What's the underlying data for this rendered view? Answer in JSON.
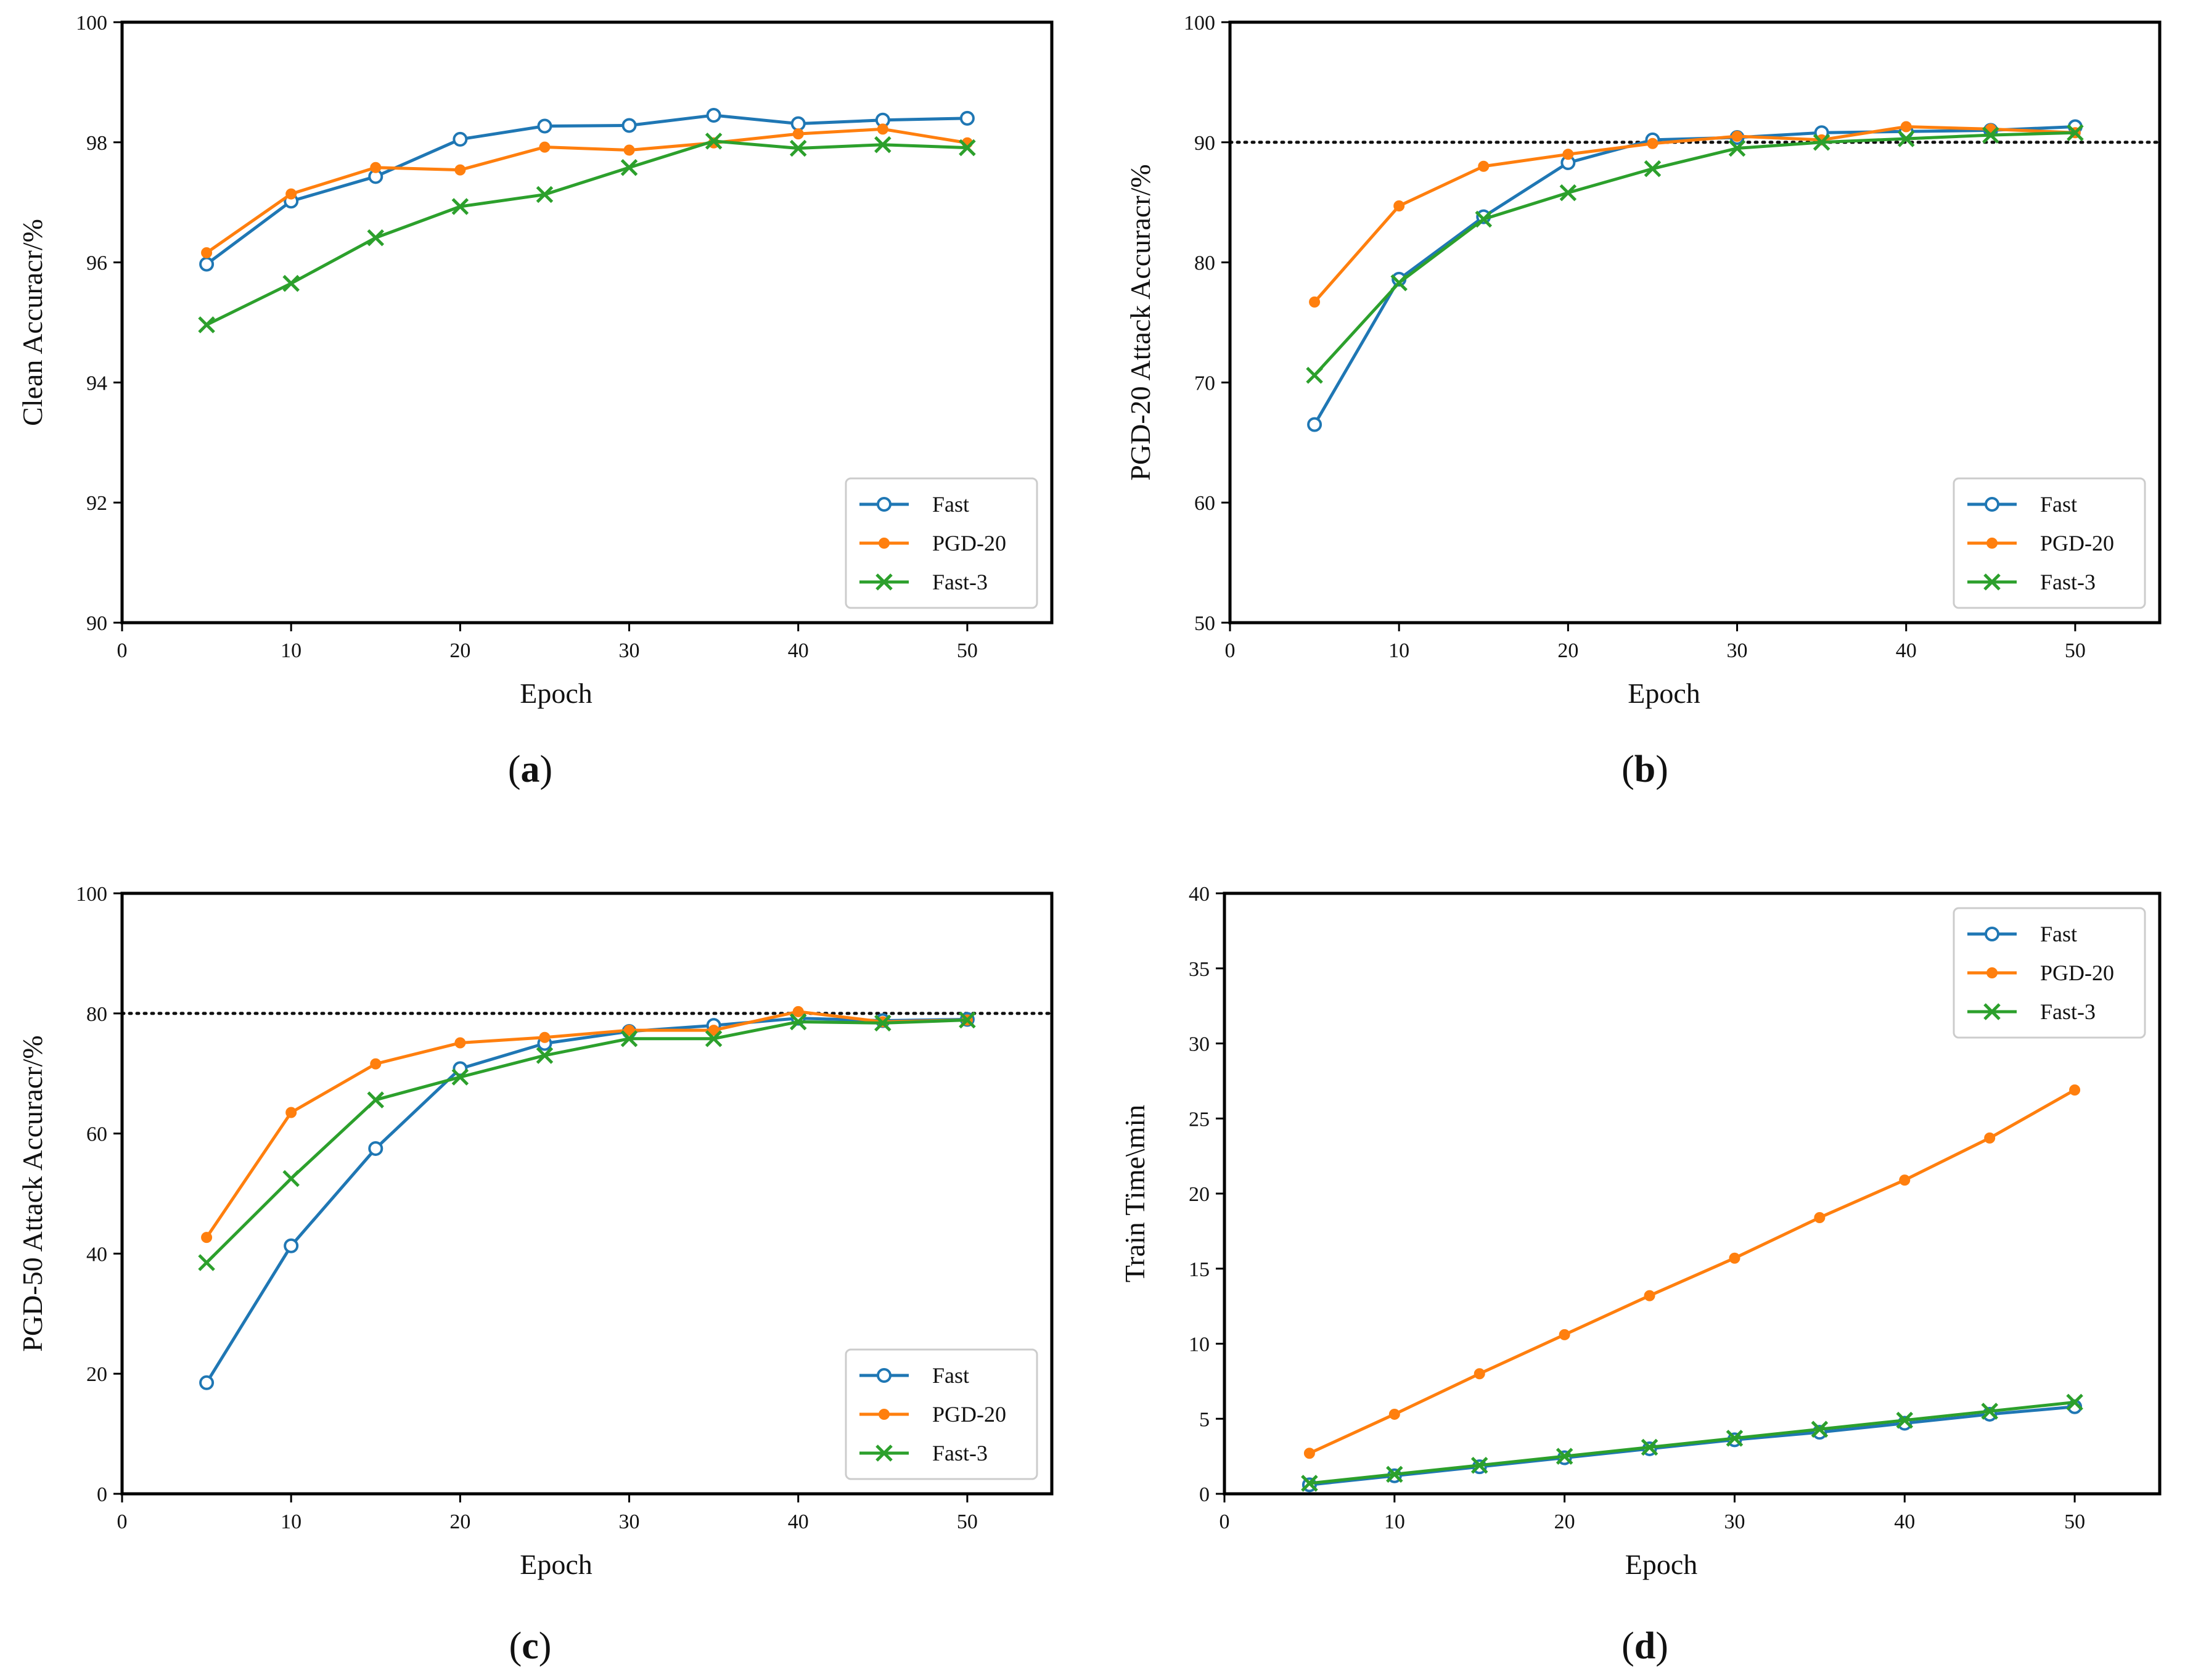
{
  "colors": {
    "Fast": "#1f77b4",
    "PGD-20": "#ff7f0e",
    "Fast-3": "#2ca02c",
    "reference": "#111111"
  },
  "chart_data": [
    {
      "type": "line",
      "panel": "a",
      "caption": "(a)",
      "title": "",
      "xlabel": "Epoch",
      "ylabel": "Clean Accuracr/%",
      "xlim": [
        0,
        55
      ],
      "ylim": [
        90,
        100
      ],
      "xticks": [
        0,
        10,
        20,
        30,
        40,
        50
      ],
      "yticks": [
        90,
        92,
        94,
        96,
        98,
        100
      ],
      "x": [
        5,
        10,
        15,
        20,
        25,
        30,
        35,
        40,
        45,
        50
      ],
      "legend_position": "lower-right",
      "reference_line": null,
      "series": [
        {
          "name": "Fast",
          "marker": "circle-open",
          "values": [
            95.97,
            97.02,
            97.43,
            98.05,
            98.27,
            98.28,
            98.45,
            98.31,
            98.37,
            98.4
          ]
        },
        {
          "name": "PGD-20",
          "marker": "dot",
          "values": [
            96.16,
            97.14,
            97.58,
            97.54,
            97.92,
            97.87,
            97.99,
            98.14,
            98.22,
            97.99
          ]
        },
        {
          "name": "Fast-3",
          "marker": "x",
          "values": [
            94.96,
            95.65,
            96.41,
            96.93,
            97.13,
            97.58,
            98.02,
            97.9,
            97.96,
            97.91
          ]
        }
      ]
    },
    {
      "type": "line",
      "panel": "b",
      "caption": "(b)",
      "title": "",
      "xlabel": "Epoch",
      "ylabel": "PGD-20 Attack Accuracr/%",
      "xlim": [
        0,
        55
      ],
      "ylim": [
        50,
        100
      ],
      "xticks": [
        0,
        10,
        20,
        30,
        40,
        50
      ],
      "yticks": [
        50,
        60,
        70,
        80,
        90,
        100
      ],
      "x": [
        5,
        10,
        15,
        20,
        25,
        30,
        35,
        40,
        45,
        50
      ],
      "legend_position": "lower-right",
      "reference_line": 90,
      "series": [
        {
          "name": "Fast",
          "marker": "circle-open",
          "values": [
            66.5,
            78.6,
            83.8,
            88.3,
            90.2,
            90.4,
            90.8,
            90.9,
            91.0,
            91.3
          ]
        },
        {
          "name": "PGD-20",
          "marker": "dot",
          "values": [
            76.7,
            84.7,
            88.0,
            89.0,
            89.9,
            90.5,
            90.2,
            91.3,
            91.1,
            90.8
          ]
        },
        {
          "name": "Fast-3",
          "marker": "x",
          "values": [
            70.6,
            78.3,
            83.6,
            85.8,
            87.8,
            89.5,
            90.0,
            90.3,
            90.6,
            90.8
          ]
        }
      ]
    },
    {
      "type": "line",
      "panel": "c",
      "caption": "(c)",
      "title": "",
      "xlabel": "Epoch",
      "ylabel": "PGD-50 Attack Accuracr/%",
      "xlim": [
        0,
        55
      ],
      "ylim": [
        0,
        100
      ],
      "xticks": [
        0,
        10,
        20,
        30,
        40,
        50
      ],
      "yticks": [
        0,
        20,
        40,
        60,
        80,
        100
      ],
      "x": [
        5,
        10,
        15,
        20,
        25,
        30,
        35,
        40,
        45,
        50
      ],
      "legend_position": "lower-right",
      "reference_line": 80,
      "series": [
        {
          "name": "Fast",
          "marker": "circle-open",
          "values": [
            18.5,
            41.3,
            57.5,
            70.8,
            75.0,
            77.0,
            78.0,
            79.2,
            78.8,
            79.0
          ]
        },
        {
          "name": "PGD-20",
          "marker": "dot",
          "values": [
            42.7,
            63.5,
            71.6,
            75.1,
            76.0,
            77.2,
            77.2,
            80.3,
            78.6,
            78.9
          ]
        },
        {
          "name": "Fast-3",
          "marker": "x",
          "values": [
            38.5,
            52.5,
            65.6,
            69.4,
            73.0,
            75.8,
            75.8,
            78.6,
            78.4,
            78.9
          ]
        }
      ]
    },
    {
      "type": "line",
      "panel": "d",
      "caption": "(d)",
      "title": "",
      "xlabel": "Epoch",
      "ylabel": "Train Time\\min",
      "xlim": [
        0,
        55
      ],
      "ylim": [
        0,
        40
      ],
      "xticks": [
        0,
        10,
        20,
        30,
        40,
        50
      ],
      "yticks": [
        0,
        5,
        10,
        15,
        20,
        25,
        30,
        35,
        40
      ],
      "x": [
        5,
        10,
        15,
        20,
        25,
        30,
        35,
        40,
        45,
        50
      ],
      "legend_position": "upper-right",
      "reference_line": null,
      "series": [
        {
          "name": "Fast",
          "marker": "circle-open",
          "values": [
            0.6,
            1.2,
            1.8,
            2.4,
            3.0,
            3.6,
            4.1,
            4.7,
            5.3,
            5.8
          ]
        },
        {
          "name": "PGD-20",
          "marker": "dot",
          "values": [
            2.7,
            5.3,
            8.0,
            10.6,
            13.2,
            15.7,
            18.4,
            20.9,
            23.7,
            26.9
          ]
        },
        {
          "name": "Fast-3",
          "marker": "x",
          "values": [
            0.7,
            1.3,
            1.9,
            2.5,
            3.1,
            3.7,
            4.3,
            4.9,
            5.5,
            6.1
          ]
        }
      ]
    }
  ]
}
